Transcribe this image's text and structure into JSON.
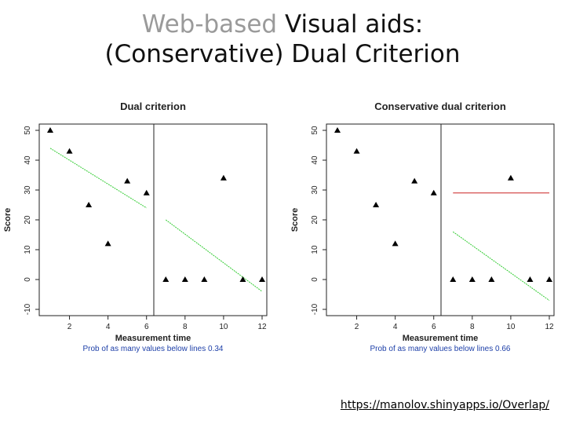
{
  "slide": {
    "title_grey": "Web-based",
    "title_rest": "Visual aids:",
    "title_line2": "(Conservative) Dual Criterion",
    "link": "https://manolov.shinyapps.io/Overlap/"
  },
  "colors": {
    "trend": "#33cc33",
    "mean_line": "#cc2222",
    "note": "#1d3fa8"
  },
  "chart_data": [
    {
      "type": "scatter",
      "title": "Dual criterion",
      "xlabel": "Measurement time",
      "ylabel": "Score",
      "note": "Prob of as many values below lines 0.34",
      "x": [
        1,
        2,
        3,
        4,
        5,
        6,
        7,
        8,
        9,
        10,
        11,
        12
      ],
      "y": [
        50,
        43,
        25,
        12,
        33,
        29,
        0,
        0,
        0,
        34,
        0,
        0
      ],
      "phase_change_after": 6,
      "xtick_labels": [
        "2",
        "4",
        "6",
        "8",
        "10",
        "12"
      ],
      "ylim": [
        -10,
        50
      ],
      "ytick_labels": [
        "-10",
        "0",
        "10",
        "20",
        "30",
        "40",
        "50"
      ],
      "trend_line": {
        "x": [
          1,
          6
        ],
        "y": [
          44,
          24
        ],
        "extended": {
          "x": [
            7,
            12
          ],
          "y": [
            20,
            -4
          ]
        }
      },
      "mean_line": null
    },
    {
      "type": "scatter",
      "title": "Conservative dual criterion",
      "xlabel": "Measurement time",
      "ylabel": "Score",
      "note": "Prob of as many values below lines 0.66",
      "x": [
        1,
        2,
        3,
        4,
        5,
        6,
        7,
        8,
        9,
        10,
        11,
        12
      ],
      "y": [
        50,
        43,
        25,
        12,
        33,
        29,
        0,
        0,
        0,
        34,
        0,
        0
      ],
      "phase_change_after": 6,
      "xtick_labels": [
        "2",
        "4",
        "6",
        "8",
        "10",
        "12"
      ],
      "ylim": [
        -10,
        50
      ],
      "ytick_labels": [
        "-10",
        "0",
        "10",
        "20",
        "30",
        "40",
        "50"
      ],
      "trend_line": {
        "x": [
          7,
          12
        ],
        "y": [
          16,
          -7
        ]
      },
      "mean_line": {
        "x": [
          7,
          12
        ],
        "y": 29
      }
    }
  ]
}
